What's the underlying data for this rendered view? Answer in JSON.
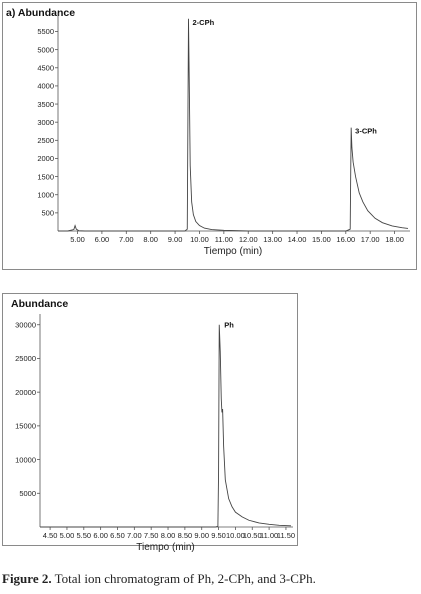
{
  "chart_data": [
    {
      "type": "line",
      "panel_label": "a)",
      "title": "Abundance",
      "xlabel": "Tiempo (min)",
      "ylabel": "",
      "xlim": [
        4.2,
        18.55
      ],
      "ylim": [
        0,
        5900
      ],
      "x_ticks": [
        5,
        6,
        7,
        8,
        9,
        10,
        11,
        12,
        13,
        14,
        15,
        16,
        17,
        18
      ],
      "x_tick_labels": [
        "5.00",
        "6.00",
        "7.00",
        "8.00",
        "9.00",
        "10.00",
        "11.00",
        "12.00",
        "13.00",
        "14.00",
        "15.00",
        "16.00",
        "17.00",
        "18.00"
      ],
      "y_ticks": [
        500,
        1000,
        1500,
        2000,
        2500,
        3000,
        3500,
        4000,
        4500,
        5000,
        5500
      ],
      "y_tick_labels": [
        "500",
        "1000",
        "1500",
        "2000",
        "2500",
        "3000",
        "3500",
        "4000",
        "4500",
        "5000",
        "5500"
      ],
      "annotations": [
        {
          "text": "2-CPh",
          "x": 9.55,
          "y": 5850
        },
        {
          "text": "3-CPh",
          "x": 16.22,
          "y": 2850
        }
      ],
      "series": [
        {
          "x": [
            4.2,
            4.6,
            4.85,
            4.9,
            4.95,
            5.05,
            5.3,
            9.4,
            9.5,
            9.53,
            9.55,
            9.58,
            9.62,
            9.68,
            9.75,
            9.85,
            10.0,
            10.2,
            10.5,
            11.0,
            12.0,
            14.0,
            16.0,
            16.18,
            16.2,
            16.22,
            16.25,
            16.3,
            16.4,
            16.55,
            16.7,
            16.9,
            17.2,
            17.5,
            17.9,
            18.3,
            18.55
          ],
          "values": [
            0,
            0,
            40,
            150,
            50,
            10,
            0,
            0,
            50,
            3500,
            5850,
            4200,
            1800,
            800,
            450,
            260,
            150,
            80,
            40,
            20,
            0,
            0,
            0,
            50,
            1500,
            2850,
            2300,
            1900,
            1500,
            1050,
            800,
            560,
            350,
            230,
            140,
            90,
            70
          ]
        }
      ]
    },
    {
      "type": "line",
      "title": "Abundance",
      "xlabel": "Tiempo (min)",
      "ylabel": "",
      "xlim": [
        4.2,
        11.65
      ],
      "ylim": [
        0,
        31000
      ],
      "x_ticks": [
        4.5,
        5,
        5.5,
        6,
        6.5,
        7,
        7.5,
        8,
        8.5,
        9,
        9.5,
        10,
        10.5,
        11,
        11.5
      ],
      "x_tick_labels": [
        "4.50",
        "5.00",
        "5.50",
        "6.00",
        "6.50",
        "7.00",
        "7.50",
        "8.00",
        "8.50",
        "9.00",
        "9.50",
        "10.00",
        "10.50",
        "11.00",
        "11.50"
      ],
      "y_ticks": [
        5000,
        10000,
        15000,
        20000,
        25000,
        30000
      ],
      "y_tick_labels": [
        "5000",
        "10000",
        "15000",
        "20000",
        "25000",
        "30000"
      ],
      "annotations": [
        {
          "text": "Ph",
          "x": 9.55,
          "y": 30500
        }
      ],
      "series": [
        {
          "x": [
            4.2,
            9.4,
            9.48,
            9.5,
            9.52,
            9.55,
            9.58,
            9.6,
            9.62,
            9.65,
            9.7,
            9.8,
            9.9,
            10.0,
            10.2,
            10.4,
            10.7,
            11.0,
            11.3,
            11.65
          ],
          "values": [
            0,
            0,
            100,
            8000,
            30000,
            26000,
            19000,
            17000,
            17500,
            12000,
            7000,
            4200,
            3000,
            2200,
            1500,
            1000,
            600,
            400,
            250,
            180
          ]
        }
      ]
    }
  ],
  "caption": {
    "label": "Figure 2.",
    "text": " Total ion chromatogram of Ph, 2-CPh, and 3-CPh."
  }
}
